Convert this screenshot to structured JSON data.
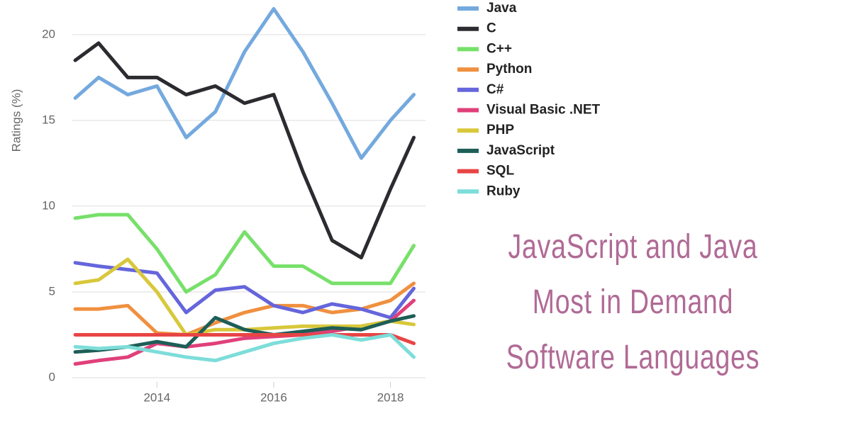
{
  "chart_data": {
    "type": "line",
    "y_label": "Ratings (%)",
    "annotations": [
      "JavaScript and Java",
      "Most in Demand",
      "Software Languages"
    ],
    "x": [
      2012.6,
      2013,
      2013.5,
      2014,
      2014.5,
      2015,
      2015.5,
      2016,
      2016.5,
      2017,
      2017.5,
      2018,
      2018.4
    ],
    "xlim": [
      2012.55,
      2018.6
    ],
    "xticks": [
      2014,
      2016,
      2018
    ],
    "ylim": [
      0,
      22
    ],
    "yticks": [
      0,
      5,
      10,
      15,
      20
    ],
    "grid": true,
    "series": [
      {
        "name": "Java",
        "color": "#74a9de",
        "values": [
          16.3,
          17.5,
          16.5,
          17,
          14,
          15.5,
          19,
          21.5,
          19,
          16,
          12.8,
          15,
          16.5
        ]
      },
      {
        "name": "C",
        "color": "#2b2b30",
        "values": [
          18.5,
          19.5,
          17.5,
          17.5,
          16.5,
          17,
          16,
          16.5,
          12,
          8,
          7,
          11,
          14
        ]
      },
      {
        "name": "C++",
        "color": "#77e06a",
        "values": [
          9.3,
          9.5,
          9.5,
          7.5,
          5,
          6,
          8.5,
          6.5,
          6.5,
          5.5,
          5.5,
          5.5,
          7.7
        ]
      },
      {
        "name": "Python",
        "color": "#f0903f",
        "values": [
          4,
          4,
          4.2,
          2.6,
          2.5,
          3.2,
          3.8,
          4.2,
          4.2,
          3.8,
          4,
          4.5,
          5.5
        ]
      },
      {
        "name": "C#",
        "color": "#6565dc",
        "values": [
          6.7,
          6.5,
          6.3,
          6.1,
          3.8,
          5.1,
          5.3,
          4.2,
          3.8,
          4.3,
          4,
          3.5,
          5.2
        ]
      },
      {
        "name": "Visual Basic .NET",
        "color": "#e0407a",
        "values": [
          0.8,
          1,
          1.2,
          2,
          1.8,
          2,
          2.3,
          2.4,
          2.5,
          2.7,
          3,
          3.3,
          4.5
        ]
      },
      {
        "name": "PHP",
        "color": "#d8c83a",
        "values": [
          5.5,
          5.7,
          6.9,
          5,
          2.5,
          2.8,
          2.8,
          2.9,
          3,
          3,
          3,
          3.3,
          3.1
        ]
      },
      {
        "name": "JavaScript",
        "color": "#1d5e57",
        "values": [
          1.5,
          1.6,
          1.8,
          2.1,
          1.8,
          3.5,
          2.8,
          2.5,
          2.7,
          2.9,
          2.8,
          3.3,
          3.6
        ]
      },
      {
        "name": "SQL",
        "color": "#e84545",
        "values": [
          2.5,
          2.5,
          2.5,
          2.5,
          2.5,
          2.5,
          2.5,
          2.5,
          2.5,
          2.5,
          2.5,
          2.5,
          2.0
        ]
      },
      {
        "name": "Ruby",
        "color": "#7dddd9",
        "values": [
          1.8,
          1.7,
          1.8,
          1.5,
          1.2,
          1.0,
          1.5,
          2.0,
          2.3,
          2.5,
          2.2,
          2.5,
          1.2
        ]
      }
    ]
  }
}
